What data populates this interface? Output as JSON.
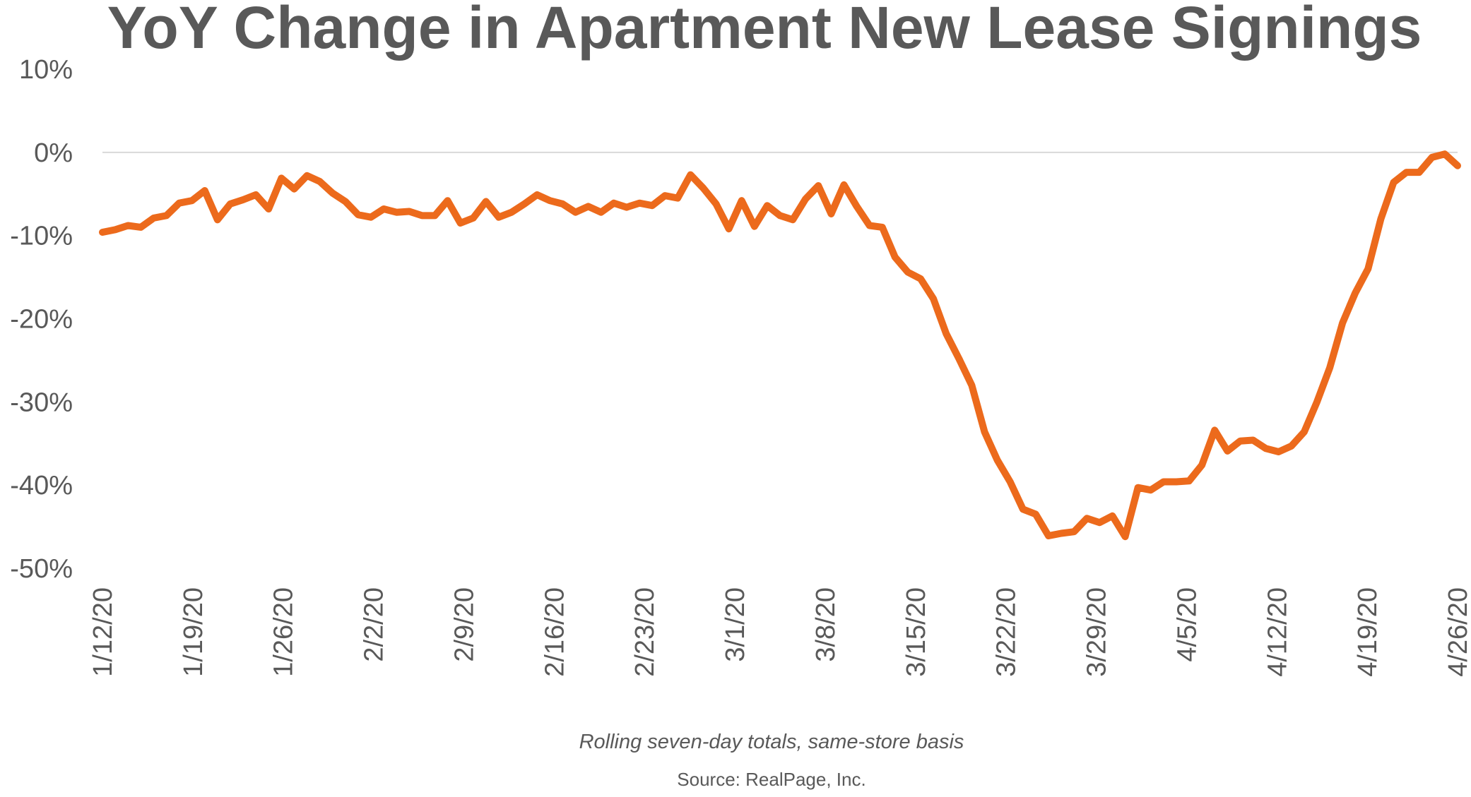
{
  "chart_data": {
    "type": "line",
    "title": "YoY Change in Apartment New Lease Signings",
    "note": "Rolling seven-day totals, same-store basis",
    "source": "Source: RealPage, Inc.",
    "xlabel": "",
    "ylabel": "",
    "ylim": [
      -50,
      10
    ],
    "yticks": [
      10,
      0,
      -10,
      -20,
      -30,
      -40,
      -50
    ],
    "ytick_labels": [
      "10%",
      "0%",
      "-10%",
      "-20%",
      "-30%",
      "-40%",
      "-50%"
    ],
    "grid": "zero line only",
    "legend": "none",
    "line_color": "#EC6A1C",
    "zero_line_color": "#D9D9D9",
    "x_start": "2020-01-12",
    "x_end": "2020-04-26",
    "xtick_labels": [
      "1/12/20",
      "1/19/20",
      "1/26/20",
      "2/2/20",
      "2/9/20",
      "2/16/20",
      "2/23/20",
      "3/1/20",
      "3/8/20",
      "3/15/20",
      "3/22/20",
      "3/29/20",
      "4/5/20",
      "4/12/20",
      "4/19/20",
      "4/26/20"
    ],
    "series": [
      {
        "values": [
          -9.6,
          -9.3,
          -8.8,
          -9.0,
          -7.9,
          -7.6,
          -6.1,
          -5.8,
          -4.6,
          -8.1,
          -6.2,
          -5.7,
          -5.1,
          -6.8,
          -3.1,
          -4.4,
          -2.8,
          -3.5,
          -4.9,
          -5.9,
          -7.5,
          -7.8,
          -6.8,
          -7.2,
          -7.1,
          -7.6,
          -7.6,
          -5.8,
          -8.5,
          -7.9,
          -5.9,
          -7.8,
          -7.2,
          -6.2,
          -5.1,
          -5.8,
          -6.2,
          -7.2,
          -6.5,
          -7.2,
          -6.1,
          -6.6,
          -6.1,
          -6.4,
          -5.2,
          -5.5,
          -2.7,
          -4.3,
          -6.2,
          -9.2,
          -5.8,
          -8.9,
          -6.4,
          -7.6,
          -8.1,
          -5.6,
          -4.0,
          -7.4,
          -3.9,
          -6.5,
          -8.8,
          -9.0,
          -12.6,
          -14.4,
          -15.2,
          -17.6,
          -21.8,
          -24.8,
          -28.0,
          -33.6,
          -37.0,
          -39.6,
          -42.9,
          -43.5,
          -46.1,
          -45.8,
          -45.6,
          -44.0,
          -44.5,
          -43.7,
          -46.2,
          -40.3,
          -40.6,
          -39.6,
          -39.6,
          -39.5,
          -37.6,
          -33.4,
          -35.9,
          -34.7,
          -34.6,
          -35.6,
          -36.0,
          -35.3,
          -33.6,
          -30.0,
          -25.9,
          -20.5,
          -16.9,
          -14.0,
          -8.0,
          -3.6,
          -2.4,
          -2.4,
          -0.6,
          -0.2,
          -1.6
        ]
      }
    ]
  }
}
